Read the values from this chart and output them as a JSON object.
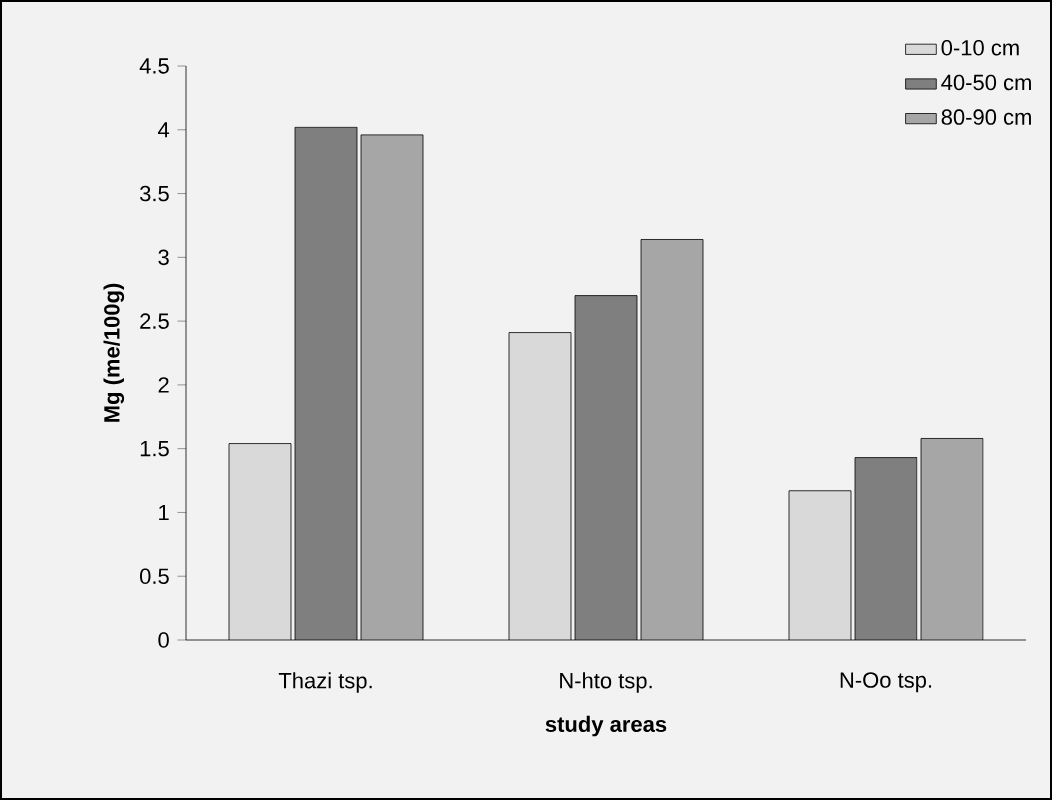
{
  "chart_data": {
    "type": "bar",
    "xlabel": "study areas",
    "ylabel": "Mg (me/100g)",
    "categories": [
      "Thazi tsp.",
      "N-hto tsp.",
      "N-Oo tsp."
    ],
    "series": [
      {
        "name": "0-10 cm",
        "color": "#d9d9d9",
        "values": [
          1.54,
          2.41,
          1.17
        ]
      },
      {
        "name": "40-50 cm",
        "color": "#7f7f7f",
        "values": [
          4.02,
          2.7,
          1.43
        ]
      },
      {
        "name": "80-90 cm",
        "color": "#a6a6a6",
        "values": [
          3.96,
          3.14,
          1.58
        ]
      }
    ],
    "ylim": [
      0,
      4.5
    ],
    "yticks": [
      0,
      0.5,
      1,
      1.5,
      2,
      2.5,
      3,
      3.5,
      4,
      4.5
    ],
    "legend": "top right",
    "grid": false
  }
}
